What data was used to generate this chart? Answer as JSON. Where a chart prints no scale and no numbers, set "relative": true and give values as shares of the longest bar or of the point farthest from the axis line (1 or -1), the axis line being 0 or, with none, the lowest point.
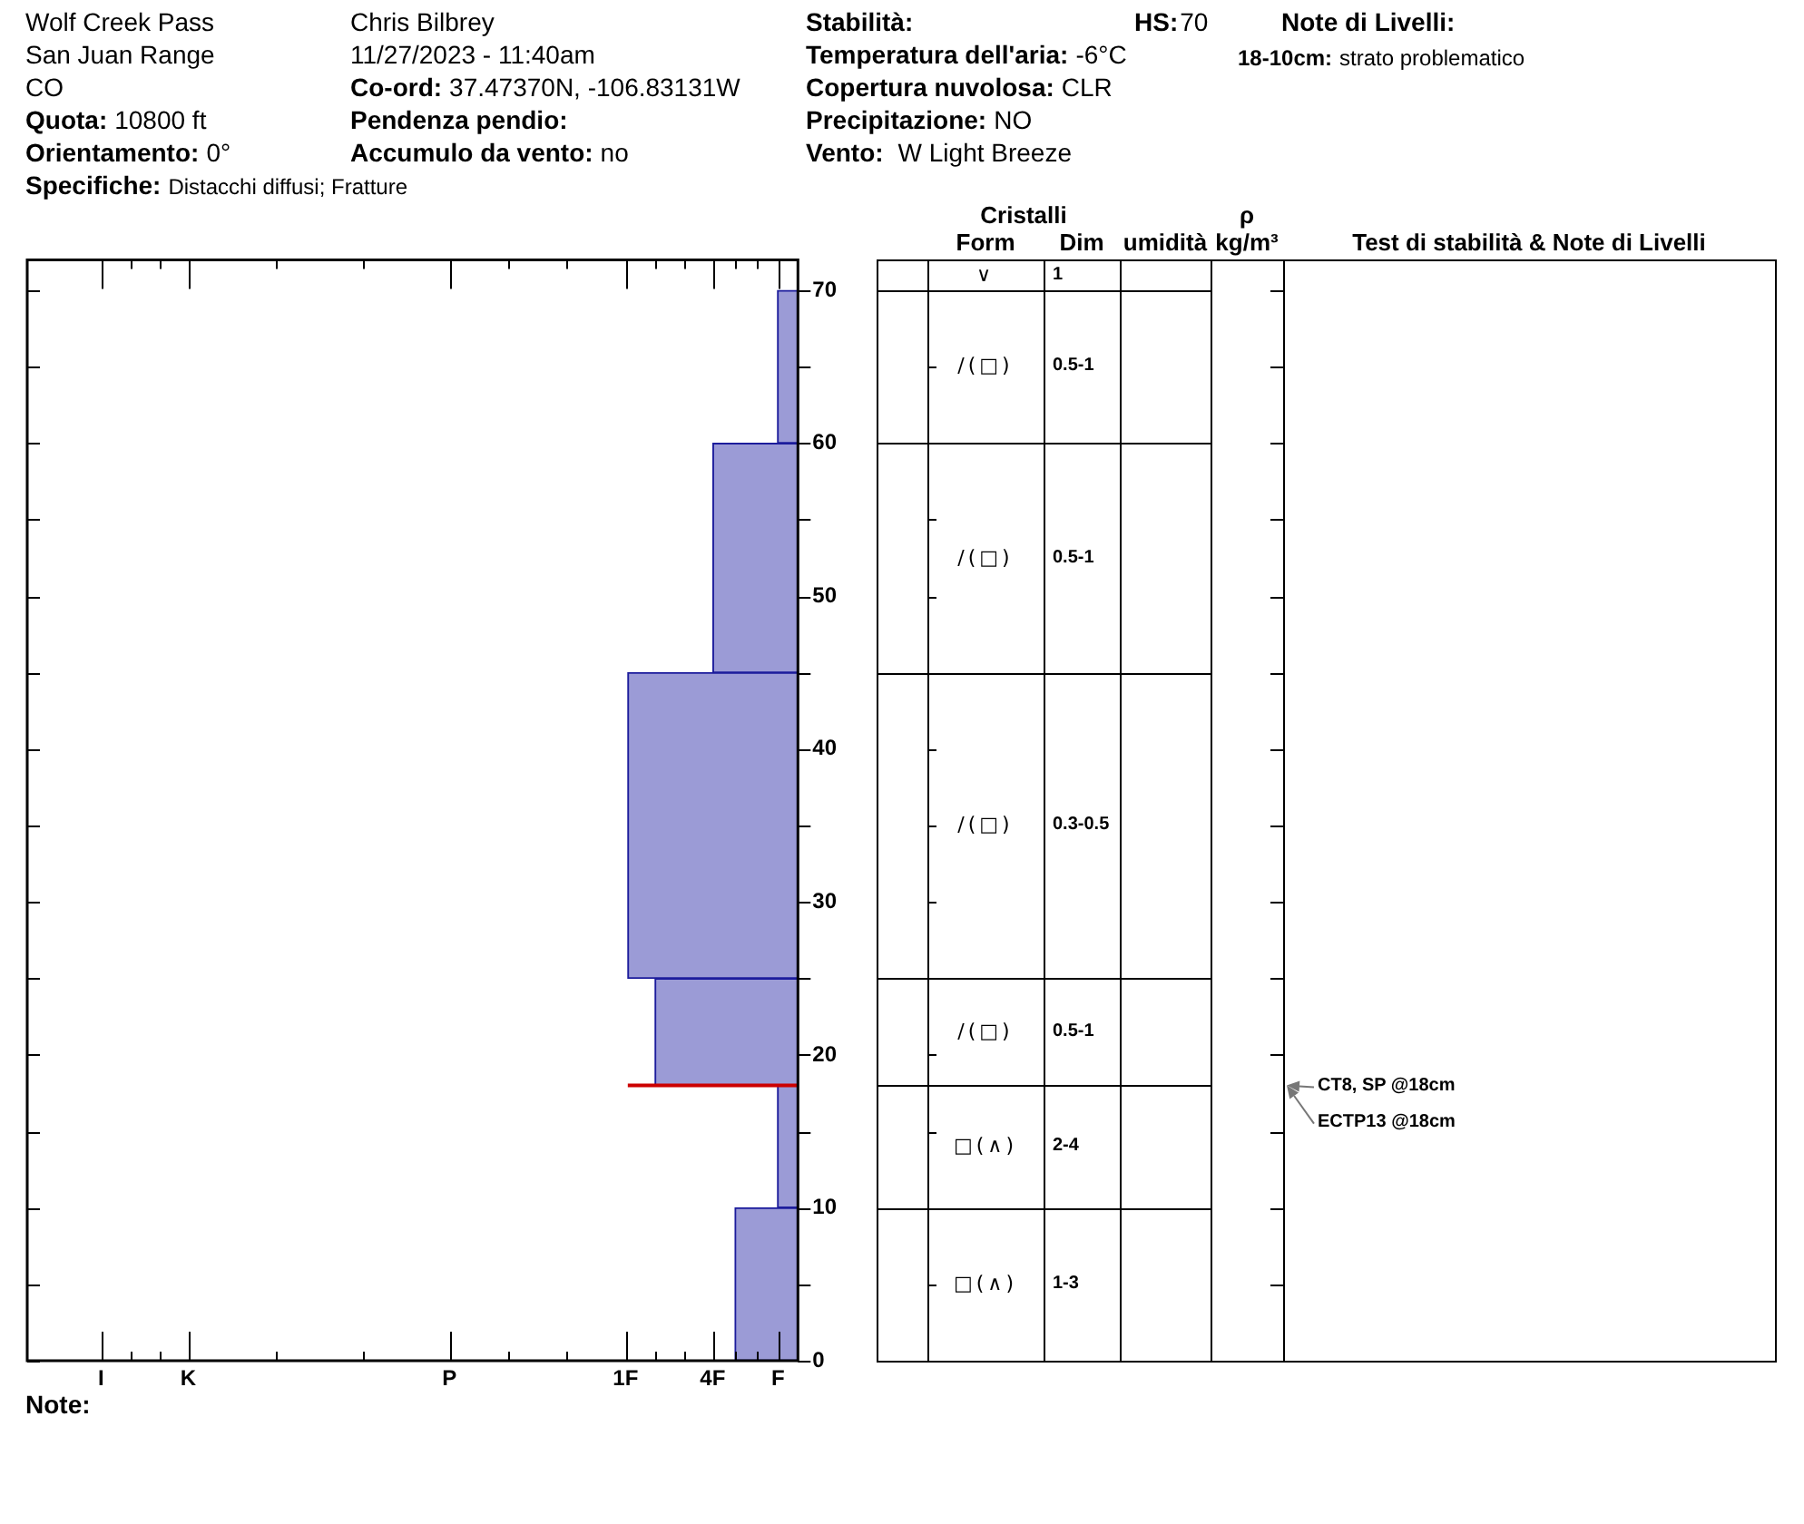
{
  "chart_data": [
    {
      "type": "other",
      "annotations": [
        "Wolf Creek Pass",
        "San Juan Range",
        "CO",
        "Quota:",
        "10800 ft",
        "Orientamento:",
        "0°",
        "Specifiche:",
        "Distacchi diffusi; Fratture",
        "Chris Bilbrey",
        "11/27/2023 - 11:40am",
        "Co-ord:",
        "37.47370N, -106.83131W",
        "Pendenza pendio:",
        "Accumulo da vento:",
        "no",
        "Stabilità:",
        "HS:",
        "70",
        "Temperatura dell'aria:",
        "-6°C",
        "Copertura nuvolosa:",
        "CLR",
        "Precipitazione:",
        "NO",
        "Vento:",
        "W Light Breeze",
        "Note di Livelli:",
        "18-10cm:",
        "strato problematico"
      ]
    },
    {
      "type": "bar",
      "orientation": "horizontal",
      "relative": true,
      "x": [
        5,
        14,
        21.5,
        35,
        52.5,
        65
      ],
      "values": [
        0.37,
        0.12,
        0.84,
        1,
        0.5,
        0.12
      ],
      "color": "#9b9bd6",
      "ylim": [
        0,
        72
      ],
      "yticks": [
        0,
        {
          "value": 5,
          "label": null
        },
        10,
        {
          "value": 15,
          "label": null
        },
        20,
        {
          "value": 25,
          "label": null
        },
        30,
        {
          "value": 35,
          "label": null
        },
        40,
        {
          "value": 45,
          "label": null
        },
        50,
        {
          "value": 55,
          "label": null
        },
        60,
        {
          "value": 65,
          "label": null
        },
        70
      ],
      "ref_lines": [
        {
          "axis": "y",
          "value": 18,
          "color": "#cc0000"
        }
      ],
      "annotations": [
        "Cristalli",
        "Form",
        "Dim",
        "umidità",
        "ρ kg/m³",
        "Test di stabilità & Note di Livelli",
        "I",
        "K",
        "P",
        "1F",
        "4F",
        "F",
        "Note:",
        "∨",
        "1",
        "∕(□)",
        "0.5-1",
        "∕(□)",
        "0.5-1",
        "∕(□)",
        "0.3-0.5",
        "∕(□)",
        "0.5-1",
        "□(∧)",
        "2-4",
        "□(∧)",
        "1-3",
        "CT8, SP @18cm",
        "ECTP13 @18cm"
      ]
    }
  ]
}
